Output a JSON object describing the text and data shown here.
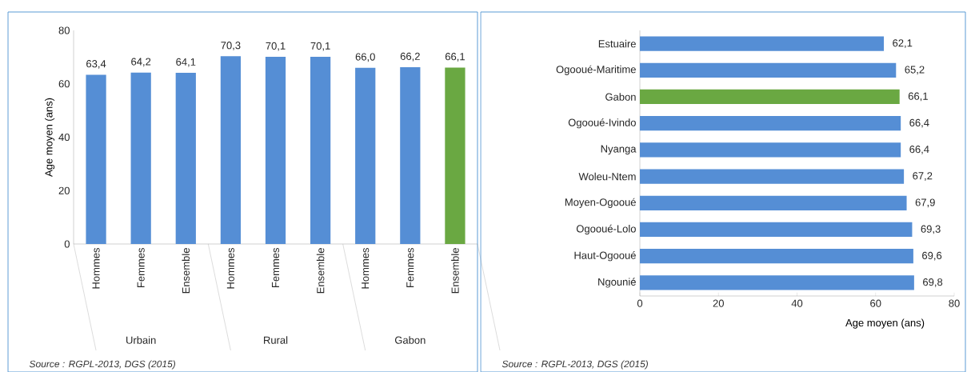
{
  "chart_data": [
    {
      "type": "bar",
      "ylabel": "Age moyen (ans)",
      "categories": [
        "Hommes",
        "Femmes",
        "Ensemble",
        "Hommes",
        "Femmes",
        "Ensemble",
        "Hommes",
        "Femmes",
        "Ensemble"
      ],
      "values": [
        63.4,
        64.2,
        64.1,
        70.3,
        70.1,
        70.1,
        66.0,
        66.2,
        66.1
      ],
      "value_labels": [
        "63,4",
        "64,2",
        "64,1",
        "70,3",
        "70,1",
        "70,1",
        "66,0",
        "66,2",
        "66,1"
      ],
      "colors": [
        "#558ed5",
        "#558ed5",
        "#558ed5",
        "#558ed5",
        "#558ed5",
        "#558ed5",
        "#558ed5",
        "#558ed5",
        "#6aa842"
      ],
      "ylim": [
        0,
        80
      ],
      "yticks": [
        0,
        20,
        40,
        60,
        80
      ],
      "annotations": [
        "Urbain",
        "Rural",
        "Gabon",
        "Source : RGPL-2013, DGS (2015)"
      ]
    },
    {
      "type": "bar",
      "orientation": "horizontal",
      "xlabel": "Age moyen (ans)",
      "categories": [
        "Estuaire",
        "Ogooué-Maritime",
        "Gabon",
        "Ogooué-Ivindo",
        "Nyanga",
        "Woleu-Ntem",
        "Moyen-Ogooué",
        "Ogooué-Lolo",
        "Haut-Ogooué",
        "Ngounié"
      ],
      "values": [
        62.1,
        65.2,
        66.1,
        66.4,
        66.4,
        67.2,
        67.9,
        69.3,
        69.6,
        69.8
      ],
      "value_labels": [
        "62,1",
        "65,2",
        "66,1",
        "66,4",
        "66,4",
        "67,2",
        "67,9",
        "69,3",
        "69,6",
        "69,8"
      ],
      "colors": [
        "#558ed5",
        "#558ed5",
        "#6aa842",
        "#558ed5",
        "#558ed5",
        "#558ed5",
        "#558ed5",
        "#558ed5",
        "#558ed5",
        "#558ed5"
      ],
      "xlim": [
        0,
        80
      ],
      "xticks": [
        0,
        20,
        40,
        60,
        80
      ],
      "annotations": [
        "Source : RGPL-2013, DGS (2015)"
      ]
    }
  ]
}
